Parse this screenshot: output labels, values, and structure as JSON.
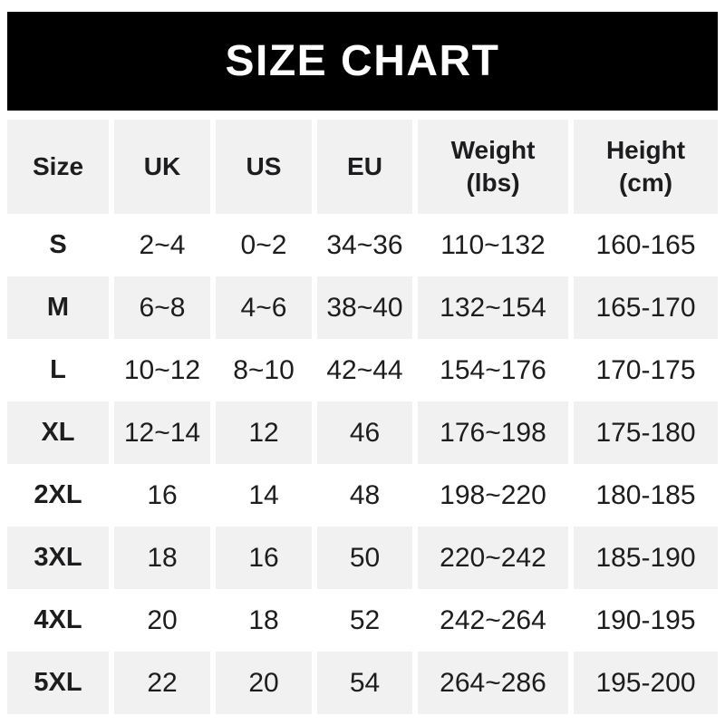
{
  "banner": {
    "title": "SIZE CHART",
    "bg_color": "#000000",
    "text_color": "#ffffff"
  },
  "table": {
    "stripe_color": "#f1f1f1",
    "text_color": "#1d1d1f",
    "row_bg_alternation": [
      "white",
      "gray"
    ]
  },
  "chart_data": {
    "type": "table",
    "title": "SIZE CHART",
    "columns": [
      {
        "label": "Size",
        "sub": ""
      },
      {
        "label": "UK",
        "sub": ""
      },
      {
        "label": "US",
        "sub": ""
      },
      {
        "label": "EU",
        "sub": ""
      },
      {
        "label": "Weight",
        "sub": "(lbs)"
      },
      {
        "label": "Height",
        "sub": "(cm)"
      }
    ],
    "rows": [
      [
        "S",
        "2~4",
        "0~2",
        "34~36",
        "110~132",
        "160-165"
      ],
      [
        "M",
        "6~8",
        "4~6",
        "38~40",
        "132~154",
        "165-170"
      ],
      [
        "L",
        "10~12",
        "8~10",
        "42~44",
        "154~176",
        "170-175"
      ],
      [
        "XL",
        "12~14",
        "12",
        "46",
        "176~198",
        "175-180"
      ],
      [
        "2XL",
        "16",
        "14",
        "48",
        "198~220",
        "180-185"
      ],
      [
        "3XL",
        "18",
        "16",
        "50",
        "220~242",
        "185-190"
      ],
      [
        "4XL",
        "20",
        "18",
        "52",
        "242~264",
        "190-195"
      ],
      [
        "5XL",
        "22",
        "20",
        "54",
        "264~286",
        "195-200"
      ]
    ]
  }
}
